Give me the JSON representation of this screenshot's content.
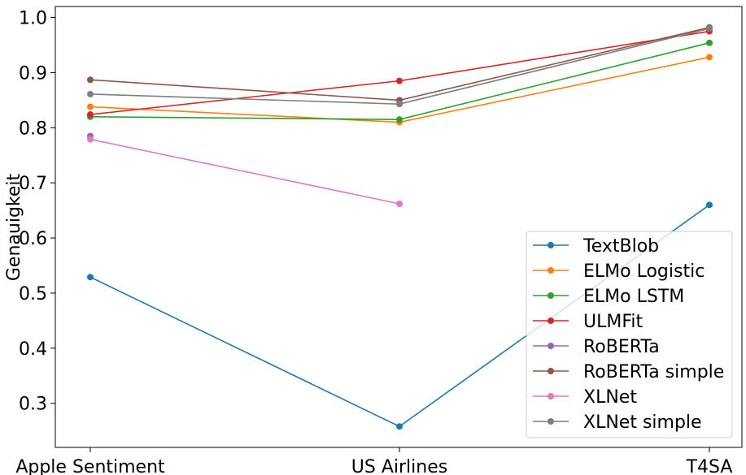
{
  "chart_data": {
    "type": "line",
    "categories": [
      "Apple Sentiment",
      "US Airlines",
      "T4SA"
    ],
    "ylabel": "Genauigkeit",
    "ylim": [
      0.22,
      1.02
    ],
    "yticks": [
      0.3,
      0.4,
      0.5,
      0.6,
      0.7,
      0.8,
      0.9,
      1.0
    ],
    "ytick_labels": [
      "0.3",
      "0.4",
      "0.5",
      "0.6",
      "0.7",
      "0.8",
      "0.9",
      "1.0"
    ],
    "legend_position": "lower-right",
    "grid": false,
    "series": [
      {
        "name": "TextBlob",
        "color": "#1f77b4",
        "values": [
          0.529,
          0.258,
          0.66
        ]
      },
      {
        "name": "ELMo Logistic",
        "color": "#ff7f0e",
        "values": [
          0.838,
          0.81,
          0.928
        ]
      },
      {
        "name": "ELMo LSTM",
        "color": "#2ca02c",
        "values": [
          0.82,
          0.815,
          0.954
        ]
      },
      {
        "name": "ULMFit",
        "color": "#d62728",
        "values": [
          0.824,
          0.885,
          0.975
        ]
      },
      {
        "name": "RoBERTa",
        "color": "#9467bd",
        "values": [
          0.785,
          null,
          null
        ]
      },
      {
        "name": "RoBERTa simple",
        "color": "#8c564b",
        "values": [
          0.887,
          0.85,
          0.982
        ]
      },
      {
        "name": "XLNet",
        "color": "#e377c2",
        "values": [
          0.779,
          0.662,
          null
        ]
      },
      {
        "name": "XLNet simple",
        "color": "#7f7f7f",
        "values": [
          0.861,
          0.843,
          0.98
        ]
      }
    ]
  }
}
